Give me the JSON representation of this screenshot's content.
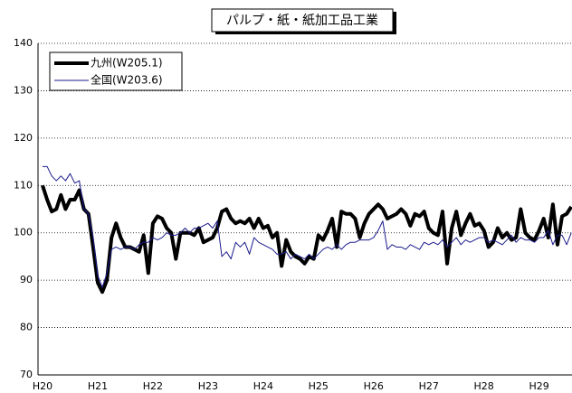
{
  "chart_data": {
    "type": "line",
    "title": "パルプ・紙・紙加工品工業",
    "categories": [
      "H20",
      null,
      null,
      null,
      null,
      null,
      null,
      null,
      null,
      null,
      null,
      null,
      "H21",
      null,
      null,
      null,
      null,
      null,
      null,
      null,
      null,
      null,
      null,
      null,
      "H22",
      null,
      null,
      null,
      null,
      null,
      null,
      null,
      null,
      null,
      null,
      null,
      "H23",
      null,
      null,
      null,
      null,
      null,
      null,
      null,
      null,
      null,
      null,
      null,
      "H24",
      null,
      null,
      null,
      null,
      null,
      null,
      null,
      null,
      null,
      null,
      null,
      "H25",
      null,
      null,
      null,
      null,
      null,
      null,
      null,
      null,
      null,
      null,
      null,
      "H26",
      null,
      null,
      null,
      null,
      null,
      null,
      null,
      null,
      null,
      null,
      null,
      "H27",
      null,
      null,
      null,
      null,
      null,
      null,
      null,
      null,
      null,
      null,
      null,
      "H28",
      null,
      null,
      null,
      null,
      null,
      null,
      null,
      null,
      null,
      null,
      null,
      "H29",
      null,
      null,
      null,
      null,
      null,
      null,
      null
    ],
    "series": [
      {
        "name": "九州(W205.1)",
        "color": "#000000",
        "values": [
          110,
          107,
          104.5,
          105,
          108,
          105,
          107,
          107,
          109,
          105,
          104,
          97,
          89.5,
          87.5,
          90,
          99,
          102,
          99,
          97,
          97,
          96.5,
          96,
          99.5,
          91.5,
          102,
          103.5,
          103,
          101,
          100,
          94.5,
          100,
          100,
          100,
          99.5,
          101,
          98,
          98.5,
          99,
          101,
          104.5,
          105,
          103,
          102,
          102.5,
          102,
          103,
          101,
          103,
          101,
          101.5,
          99,
          100,
          93,
          98.5,
          96,
          95,
          94.5,
          93.5,
          95,
          94.5,
          99.5,
          98.5,
          100.5,
          103,
          97,
          104.5,
          104,
          104,
          103,
          99,
          102,
          104,
          105,
          106,
          105,
          103,
          103.5,
          104,
          105,
          104,
          101.5,
          104,
          103.5,
          104.5,
          101,
          100,
          99.5,
          104.5,
          93.5,
          101,
          104.5,
          99.5,
          102,
          104,
          101.5,
          102,
          100.5,
          97,
          98,
          101,
          99,
          100,
          98.5,
          99,
          105,
          100,
          99,
          98.5,
          100.5,
          103,
          99,
          106,
          97.5,
          103.5,
          104,
          105.5
        ]
      },
      {
        "name": "全国(W203.6)",
        "color": "#1a1a8c",
        "values": [
          114,
          114,
          112,
          111,
          112,
          111,
          112.5,
          110.5,
          111,
          105,
          104,
          99,
          91,
          88.5,
          91.5,
          96.5,
          97,
          96.5,
          97,
          97,
          96.5,
          97.5,
          98,
          98,
          99,
          98.5,
          99,
          100,
          99.5,
          99.5,
          100,
          101,
          100,
          101,
          101,
          101.5,
          102,
          101,
          102.5,
          95,
          96,
          94.5,
          98,
          97,
          98,
          95.5,
          99,
          98,
          97.5,
          97,
          96.5,
          95.5,
          95.5,
          96,
          94.5,
          95.5,
          95,
          94.5,
          95.5,
          94.5,
          95.5,
          96.5,
          97,
          96.5,
          97.5,
          96.5,
          97.5,
          98,
          98,
          98.5,
          98.5,
          98.5,
          99,
          100.5,
          102.5,
          96.5,
          97.5,
          97,
          97,
          96.5,
          97.5,
          97,
          96.5,
          98,
          97.5,
          98,
          97.5,
          98.5,
          97,
          98,
          99,
          97.5,
          98.5,
          98,
          98.5,
          99,
          99,
          98,
          98.5,
          98,
          97.5,
          98.5,
          99.5,
          98,
          99,
          98.5,
          98.5,
          98,
          99,
          99,
          100.5,
          97.5,
          99.5,
          99.5,
          97.5,
          100
        ]
      }
    ],
    "ylim": [
      70,
      140
    ],
    "yticks": [
      70,
      80,
      90,
      100,
      110,
      120,
      130,
      140
    ],
    "grid": true,
    "legend": "upper left"
  }
}
